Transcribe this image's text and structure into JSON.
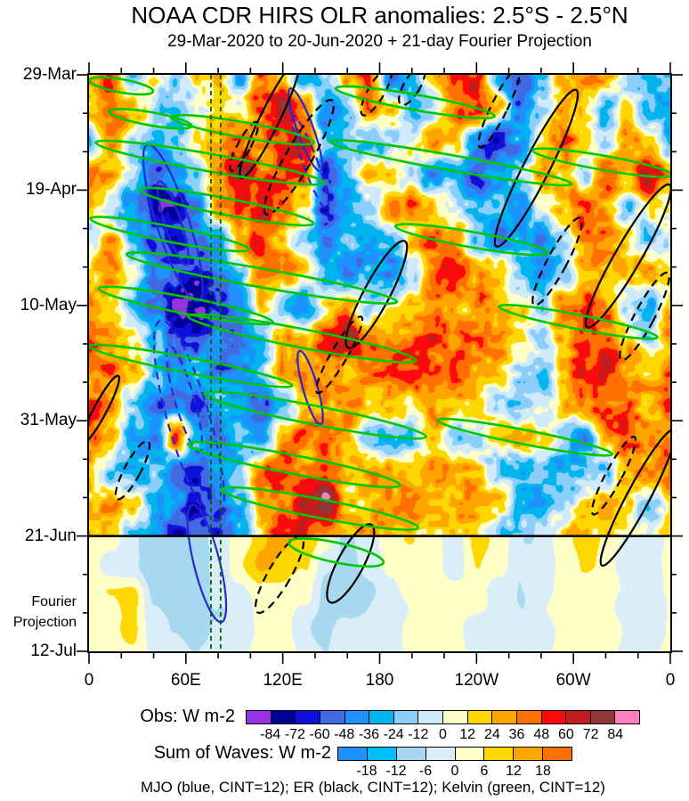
{
  "title": "NOAA CDR HIRS OLR anomalies: 2.5°S - 2.5°N",
  "subtitle": "29-Mar-2020 to 20-Jun-2020 + 21-day Fourier Projection",
  "caption": "MJO (blue, CINT=12); ER (black, CINT=12); Kelvin (green, CINT=12)",
  "chart_data": {
    "type": "heatmap",
    "kind": "hovmoller-time-longitude",
    "x_axis": {
      "tick_labels": [
        "0",
        "60E",
        "120E",
        "180",
        "120W",
        "60W",
        "0"
      ],
      "major_lons": [
        0,
        60,
        120,
        180,
        240,
        300,
        360
      ],
      "minor_step_deg": 20,
      "range_deg": [
        0,
        360
      ]
    },
    "y_axis": {
      "tick_labels": [
        "29-Mar",
        "19-Apr",
        "10-May",
        "31-May",
        "21-Jun",
        "12-Jul"
      ],
      "major_days": [
        0,
        21,
        42,
        63,
        84,
        105
      ],
      "minor_step_days": 7,
      "range_days": [
        0,
        105
      ],
      "obs_end_day": 84,
      "projection_label_lines": [
        "Fourier",
        "Projection"
      ]
    },
    "obs_colorbar": {
      "title": "Obs: W m-2",
      "tick_labels": [
        "-84",
        "-72",
        "-60",
        "-48",
        "-36",
        "-24",
        "-12",
        "0",
        "12",
        "24",
        "36",
        "48",
        "60",
        "72",
        "84"
      ],
      "level_step": 12,
      "colors": [
        "#9632E1",
        "#000096",
        "#0F0FDC",
        "#4169E1",
        "#1E90FF",
        "#00B4EE",
        "#8CCEFA",
        "#CFEAFB",
        "#FFFFC8",
        "#FFD700",
        "#FFA500",
        "#FF7000",
        "#FA0A0A",
        "#C01E1E",
        "#8F3838",
        "#FF7EC0"
      ]
    },
    "waves_colorbar": {
      "title": "Sum of Waves: W m-2",
      "tick_labels": [
        "-18",
        "-12",
        "-6",
        "0",
        "6",
        "12",
        "18"
      ],
      "level_step": 6,
      "colors": [
        "#1E90FF",
        "#00BFFF",
        "#A6D8F0",
        "#D9EEF8",
        "#FFFFC8",
        "#FFD700",
        "#FFA500",
        "#FF7000"
      ]
    },
    "reference_lines": {
      "vertical_dashed_lons": [
        75.5,
        81.5
      ],
      "color": "#006400",
      "obs_projection_divider_day": 84
    },
    "obs_grid": {
      "units": "W m-2",
      "lons": [
        0,
        13,
        27,
        40,
        53,
        67,
        80,
        93,
        107,
        120,
        133,
        147,
        160,
        173,
        187,
        200,
        213,
        227,
        240,
        253,
        267,
        280,
        293,
        307,
        320,
        333,
        347,
        360
      ],
      "days": [
        0,
        6,
        12,
        18,
        24,
        30,
        36,
        42,
        48,
        54,
        60,
        66,
        72,
        78,
        84
      ],
      "values": [
        [
          30,
          42,
          -22,
          20,
          -12,
          10,
          25,
          -30,
          45,
          22,
          -40,
          -20,
          40,
          52,
          -50,
          -22,
          30,
          62,
          50,
          -30,
          -62,
          -30,
          20,
          40,
          30,
          -20,
          -42,
          -22
        ],
        [
          20,
          50,
          20,
          -15,
          -25,
          -15,
          20,
          10,
          50,
          70,
          30,
          -50,
          -20,
          40,
          20,
          -40,
          -10,
          40,
          60,
          20,
          -50,
          -20,
          30,
          20,
          -30,
          20,
          -30,
          -40
        ],
        [
          -20,
          30,
          -10,
          -30,
          -20,
          15,
          30,
          50,
          30,
          55,
          65,
          -30,
          -10,
          -30,
          -20,
          10,
          40,
          20,
          -40,
          -70,
          -40,
          20,
          40,
          20,
          -10,
          30,
          20,
          -30
        ],
        [
          40,
          20,
          -20,
          -50,
          -30,
          -10,
          40,
          70,
          40,
          50,
          40,
          -60,
          -30,
          20,
          10,
          -20,
          -40,
          -20,
          -60,
          -40,
          -20,
          30,
          20,
          -20,
          40,
          20,
          60,
          30
        ],
        [
          20,
          -10,
          -40,
          -72,
          -80,
          -40,
          30,
          50,
          60,
          40,
          20,
          -70,
          -40,
          -10,
          30,
          40,
          20,
          -10,
          -30,
          -20,
          -40,
          -10,
          30,
          50,
          20,
          -20,
          20,
          10
        ],
        [
          -10,
          30,
          -30,
          -60,
          -70,
          -50,
          -30,
          30,
          50,
          30,
          -20,
          -40,
          -20,
          -40,
          -30,
          20,
          40,
          30,
          -20,
          -50,
          -30,
          -40,
          -20,
          30,
          40,
          10,
          -20,
          -10
        ],
        [
          20,
          40,
          10,
          -50,
          -60,
          -70,
          -40,
          -20,
          30,
          40,
          20,
          -30,
          -50,
          -20,
          -40,
          -10,
          40,
          60,
          30,
          20,
          -30,
          -50,
          -20,
          20,
          30,
          20,
          30,
          20
        ],
        [
          30,
          20,
          -20,
          -40,
          -82,
          -86,
          -60,
          -30,
          20,
          -30,
          -50,
          20,
          30,
          -20,
          10,
          20,
          30,
          20,
          40,
          30,
          20,
          -20,
          40,
          50,
          30,
          -10,
          -40,
          20
        ],
        [
          40,
          30,
          20,
          -30,
          -60,
          -70,
          -40,
          -50,
          -30,
          30,
          20,
          60,
          70,
          40,
          30,
          40,
          50,
          40,
          40,
          30,
          20,
          -10,
          30,
          60,
          40,
          20,
          -20,
          30
        ],
        [
          30,
          40,
          30,
          -20,
          -40,
          -30,
          -50,
          -40,
          -20,
          30,
          40,
          30,
          20,
          40,
          50,
          50,
          40,
          50,
          30,
          20,
          -20,
          -30,
          20,
          50,
          62,
          30,
          20,
          40
        ],
        [
          50,
          30,
          -20,
          -50,
          -40,
          -60,
          -30,
          -40,
          -50,
          -30,
          20,
          30,
          40,
          20,
          30,
          20,
          30,
          20,
          10,
          -10,
          -20,
          -10,
          30,
          40,
          50,
          40,
          30,
          50
        ],
        [
          40,
          20,
          -30,
          -40,
          50,
          -30,
          -50,
          -30,
          -40,
          30,
          40,
          50,
          30,
          -20,
          -30,
          -20,
          20,
          -30,
          -20,
          20,
          30,
          20,
          -20,
          -40,
          30,
          50,
          40,
          30
        ],
        [
          30,
          -20,
          -40,
          -20,
          -50,
          -60,
          -40,
          -20,
          40,
          50,
          30,
          40,
          20,
          30,
          30,
          20,
          40,
          30,
          20,
          -20,
          -30,
          -20,
          -40,
          -30,
          -20,
          20,
          30,
          40
        ],
        [
          20,
          30,
          20,
          -30,
          -40,
          -70,
          -50,
          -30,
          30,
          40,
          70,
          82,
          30,
          20,
          40,
          50,
          30,
          20,
          30,
          20,
          -20,
          -30,
          -20,
          20,
          30,
          20,
          -20,
          20
        ],
        [
          20,
          20,
          -20,
          -40,
          -60,
          -50,
          -60,
          -30,
          20,
          60,
          50,
          30,
          20,
          30,
          30,
          20,
          20,
          30,
          20,
          -10,
          -20,
          -10,
          10,
          20,
          20,
          10,
          10,
          20
        ]
      ]
    },
    "projection_grid": {
      "units": "W m-2",
      "lons": [
        0,
        13,
        27,
        40,
        53,
        67,
        80,
        93,
        107,
        120,
        133,
        147,
        160,
        173,
        187,
        200,
        213,
        227,
        240,
        253,
        267,
        280,
        293,
        307,
        320,
        333,
        347,
        360
      ],
      "days": [
        84,
        89,
        94,
        100,
        105
      ],
      "values": [
        [
          5,
          3,
          -5,
          -8,
          -12,
          -10,
          -6,
          3,
          10,
          14,
          12,
          5,
          -8,
          -4,
          3,
          5,
          3,
          -3,
          8,
          4,
          -4,
          -6,
          3,
          8,
          4,
          -3,
          -5,
          3
        ],
        [
          4,
          -4,
          -6,
          -10,
          -12,
          -8,
          -4,
          4,
          12,
          10,
          6,
          -6,
          -8,
          -3,
          2,
          4,
          2,
          -4,
          6,
          3,
          -5,
          -4,
          2,
          6,
          3,
          -4,
          -6,
          2
        ],
        [
          3,
          6,
          8,
          -6,
          -10,
          -8,
          -5,
          -3,
          4,
          6,
          3,
          -8,
          -10,
          -6,
          -3,
          2,
          4,
          6,
          3,
          -3,
          -5,
          -3,
          2,
          4,
          2,
          -3,
          -4,
          2
        ],
        [
          2,
          5,
          6,
          -4,
          -8,
          -10,
          -6,
          -4,
          3,
          4,
          -4,
          -8,
          -6,
          -4,
          -2,
          2,
          3,
          2,
          -2,
          -4,
          -4,
          -2,
          2,
          3,
          2,
          -2,
          -3,
          2
        ],
        [
          2,
          4,
          5,
          -3,
          -6,
          -8,
          -5,
          -3,
          2,
          3,
          -3,
          -6,
          -5,
          -3,
          -2,
          2,
          2,
          2,
          -2,
          -3,
          -3,
          -2,
          2,
          2,
          2,
          -2,
          -2,
          2
        ]
      ]
    },
    "wave_contours": {
      "legend": {
        "mjo": "blue",
        "er": "black",
        "kelvin": "green",
        "cint": 12
      },
      "colors": {
        "mjo": "#2828CF",
        "er": "#000000",
        "kelvin": "#00C800"
      },
      "ellipse_format": [
        "type",
        "lon_center",
        "day_center",
        "lon_radius",
        "day_radius",
        "angle_deg",
        "dashed"
      ],
      "ellipses": [
        [
          "mjo",
          52,
          27,
          10,
          15,
          -18,
          0
        ],
        [
          "mjo",
          52,
          27,
          5,
          8,
          -18,
          0
        ],
        [
          "mjo",
          62,
          63,
          13,
          19,
          -16,
          1
        ],
        [
          "mjo",
          59,
          59,
          6,
          10,
          -16,
          1
        ],
        [
          "mjo",
          73,
          89,
          8,
          11,
          -14,
          0
        ],
        [
          "mjo",
          134,
          10,
          5,
          8,
          -20,
          0
        ],
        [
          "mjo",
          137,
          16,
          4.5,
          9,
          -20,
          1
        ],
        [
          "mjo",
          137,
          57,
          4.5,
          7,
          -16,
          0
        ],
        [
          "er",
          112,
          8,
          6,
          12,
          26,
          0
        ],
        [
          "er",
          130,
          15,
          8,
          12,
          30,
          1
        ],
        [
          "er",
          178,
          3,
          5,
          5,
          30,
          1
        ],
        [
          "er",
          254,
          6,
          5,
          8,
          26,
          1
        ],
        [
          "er",
          277,
          17,
          8,
          16,
          27,
          0
        ],
        [
          "er",
          290,
          34,
          6,
          9,
          28,
          1
        ],
        [
          "er",
          334,
          33,
          8,
          15,
          30,
          0
        ],
        [
          "er",
          178,
          40,
          8,
          11,
          28,
          0
        ],
        [
          "er",
          155,
          51,
          5,
          8,
          30,
          1
        ],
        [
          "er",
          344,
          44,
          6,
          9,
          28,
          1
        ],
        [
          "er",
          340,
          77,
          7,
          14,
          28,
          0
        ],
        [
          "er",
          325,
          73,
          5,
          8,
          28,
          1
        ],
        [
          "er",
          27,
          72,
          5,
          6,
          28,
          1
        ],
        [
          "er",
          7,
          61,
          4,
          7,
          28,
          0
        ],
        [
          "er",
          118,
          91,
          7,
          8,
          30,
          1
        ],
        [
          "er",
          162,
          89,
          8,
          8,
          28,
          0
        ],
        [
          "er",
          96,
          13,
          4,
          5,
          28,
          1
        ],
        [
          "er",
          200,
          2,
          5,
          4,
          30,
          1
        ],
        [
          "kelvin",
          75,
          16,
          72,
          1.6,
          10,
          0
        ],
        [
          "kelvin",
          202,
          5,
          50,
          1.4,
          10,
          0
        ],
        [
          "kelvin",
          50,
          29,
          50,
          1.4,
          11,
          0
        ],
        [
          "kelvin",
          107,
          37,
          85,
          1.7,
          10,
          0
        ],
        [
          "kelvin",
          132,
          48,
          72,
          1.7,
          11,
          0
        ],
        [
          "kelvin",
          63,
          53,
          64,
          1.4,
          11,
          0
        ],
        [
          "kelvin",
          140,
          62,
          70,
          1.7,
          11,
          0
        ],
        [
          "kelvin",
          127,
          71,
          67,
          1.7,
          11,
          0
        ],
        [
          "kelvin",
          143,
          79,
          62,
          1.7,
          11,
          0
        ],
        [
          "kelvin",
          303,
          45,
          50,
          1.3,
          11,
          0
        ],
        [
          "kelvin",
          318,
          16,
          44,
          1.3,
          10,
          0
        ],
        [
          "kelvin",
          270,
          66,
          55,
          1.3,
          11,
          0
        ],
        [
          "kelvin",
          153,
          87,
          30,
          1.8,
          12,
          0
        ],
        [
          "kelvin",
          20,
          2,
          20,
          1.2,
          10,
          0
        ],
        [
          "kelvin",
          38,
          8,
          26,
          1.2,
          10,
          0
        ],
        [
          "kelvin",
          95,
          10,
          45,
          1.4,
          10,
          0
        ],
        [
          "kelvin",
          224,
          16,
          76,
          1.4,
          10,
          0
        ],
        [
          "kelvin",
          237,
          30,
          48,
          1.4,
          10,
          0
        ],
        [
          "kelvin",
          60,
          42,
          55,
          1.5,
          11,
          0
        ],
        [
          "kelvin",
          85,
          24,
          55,
          1.5,
          11,
          0
        ]
      ]
    }
  }
}
